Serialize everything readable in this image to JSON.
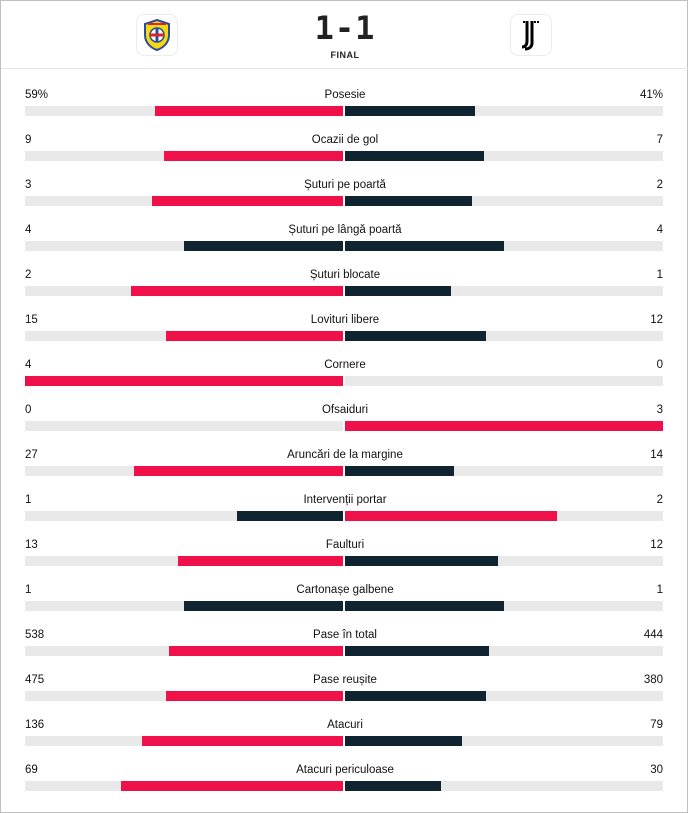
{
  "match": {
    "score": "1-1",
    "status": "FINAL",
    "home_logo": "villarreal-crest-icon",
    "away_logo": "juventus-crest-icon"
  },
  "colors": {
    "leader": "#f0104a",
    "trailer": "#0f2430",
    "track": "#e9e9e9"
  },
  "stats": [
    {
      "label": "Posesie",
      "home": "59%",
      "away": "41%",
      "home_num": 59,
      "away_num": 41
    },
    {
      "label": "Ocazii de gol",
      "home": "9",
      "away": "7",
      "home_num": 9,
      "away_num": 7
    },
    {
      "label": "Șuturi pe poartă",
      "home": "3",
      "away": "2",
      "home_num": 3,
      "away_num": 2
    },
    {
      "label": "Șuturi pe lângă poartă",
      "home": "4",
      "away": "4",
      "home_num": 4,
      "away_num": 4
    },
    {
      "label": "Șuturi blocate",
      "home": "2",
      "away": "1",
      "home_num": 2,
      "away_num": 1
    },
    {
      "label": "Lovituri libere",
      "home": "15",
      "away": "12",
      "home_num": 15,
      "away_num": 12
    },
    {
      "label": "Cornere",
      "home": "4",
      "away": "0",
      "home_num": 4,
      "away_num": 0
    },
    {
      "label": "Ofsaiduri",
      "home": "0",
      "away": "3",
      "home_num": 0,
      "away_num": 3
    },
    {
      "label": "Aruncări de la margine",
      "home": "27",
      "away": "14",
      "home_num": 27,
      "away_num": 14
    },
    {
      "label": "Intervenții portar",
      "home": "1",
      "away": "2",
      "home_num": 1,
      "away_num": 2
    },
    {
      "label": "Faulturi",
      "home": "13",
      "away": "12",
      "home_num": 13,
      "away_num": 12
    },
    {
      "label": "Cartonașe galbene",
      "home": "1",
      "away": "1",
      "home_num": 1,
      "away_num": 1
    },
    {
      "label": "Pase în total",
      "home": "538",
      "away": "444",
      "home_num": 538,
      "away_num": 444
    },
    {
      "label": "Pase reușite",
      "home": "475",
      "away": "380",
      "home_num": 475,
      "away_num": 380
    },
    {
      "label": "Atacuri",
      "home": "136",
      "away": "79",
      "home_num": 136,
      "away_num": 79
    },
    {
      "label": "Atacuri periculoase",
      "home": "69",
      "away": "30",
      "home_num": 69,
      "away_num": 30
    }
  ]
}
